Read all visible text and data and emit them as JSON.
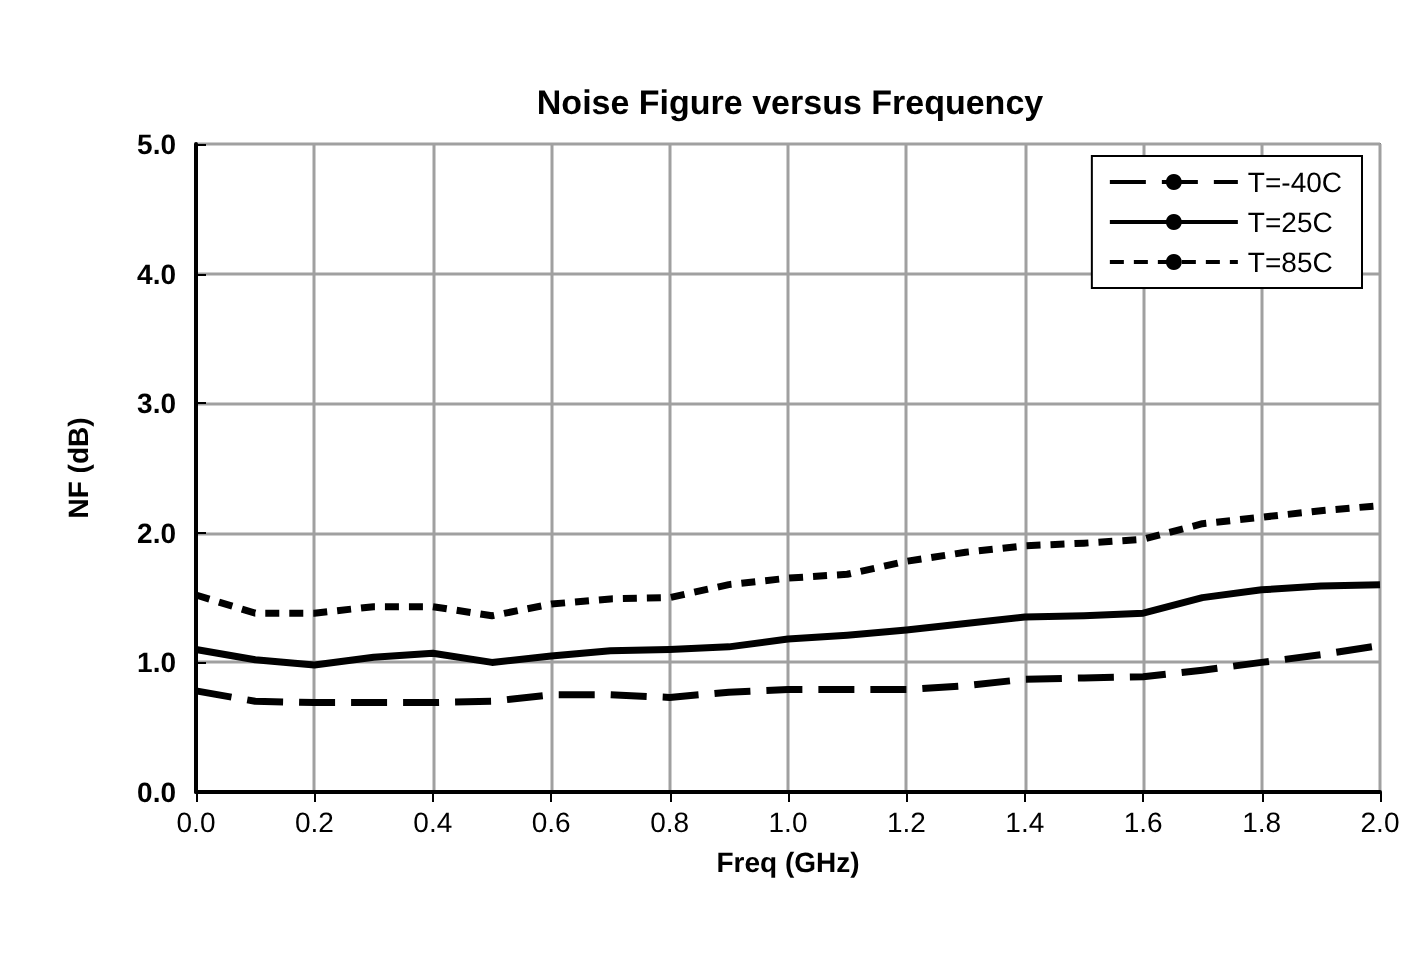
{
  "chart_data": {
    "type": "line",
    "title": "Noise Figure versus Frequency",
    "xlabel": "Freq (GHz)",
    "ylabel": "NF (dB)",
    "x": [
      0.0,
      0.1,
      0.2,
      0.3,
      0.4,
      0.5,
      0.6,
      0.7,
      0.8,
      0.9,
      1.0,
      1.1,
      1.2,
      1.3,
      1.4,
      1.5,
      1.6,
      1.7,
      1.8,
      1.9,
      2.0
    ],
    "series": [
      {
        "name": "T=-40C",
        "color": "#000000",
        "line_style": "dashed",
        "values": [
          0.78,
          0.7,
          0.69,
          0.69,
          0.69,
          0.7,
          0.75,
          0.75,
          0.73,
          0.77,
          0.79,
          0.79,
          0.79,
          0.82,
          0.87,
          0.88,
          0.89,
          0.94,
          1.0,
          1.06,
          1.13
        ]
      },
      {
        "name": "T=25C",
        "color": "#000000",
        "line_style": "solid",
        "values": [
          1.1,
          1.02,
          0.98,
          1.04,
          1.07,
          1.0,
          1.05,
          1.09,
          1.1,
          1.12,
          1.18,
          1.21,
          1.25,
          1.3,
          1.35,
          1.36,
          1.38,
          1.5,
          1.56,
          1.59,
          1.6
        ]
      },
      {
        "name": "T=85C",
        "color": "#000000",
        "line_style": "dotted",
        "values": [
          1.52,
          1.38,
          1.38,
          1.43,
          1.43,
          1.36,
          1.45,
          1.49,
          1.5,
          1.6,
          1.65,
          1.68,
          1.78,
          1.85,
          1.9,
          1.92,
          1.95,
          2.07,
          2.12,
          2.17,
          2.21
        ]
      }
    ],
    "xlim": [
      0.0,
      2.0
    ],
    "xticks": [
      {
        "value": 0,
        "label": "0.0"
      },
      {
        "value": 0.2,
        "label": "0.2"
      },
      {
        "value": 0.4,
        "label": "0.4"
      },
      {
        "value": 0.6,
        "label": "0.6"
      },
      {
        "value": 0.8,
        "label": "0.8"
      },
      {
        "value": 1,
        "label": "1.0"
      },
      {
        "value": 1.2,
        "label": "1.2"
      },
      {
        "value": 1.4,
        "label": "1.4"
      },
      {
        "value": 1.6,
        "label": "1.6"
      },
      {
        "value": 1.8,
        "label": "1.8"
      },
      {
        "value": 2,
        "label": "2.0"
      }
    ],
    "ylim": [
      0.0,
      5.0
    ],
    "yticks": [
      {
        "value": 0,
        "label": "0.0"
      },
      {
        "value": 1,
        "label": "1.0"
      },
      {
        "value": 2,
        "label": "2.0"
      },
      {
        "value": 3,
        "label": "3.0"
      },
      {
        "value": 4,
        "label": "4.0"
      },
      {
        "value": 5,
        "label": "5.0"
      }
    ],
    "grid": true,
    "legend": "top right",
    "marker": "none"
  }
}
